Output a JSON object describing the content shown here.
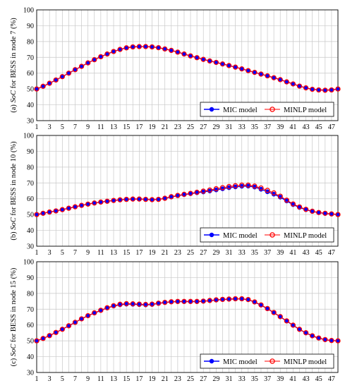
{
  "chart_data": [
    {
      "type": "line",
      "ylabel_prefix": "(a) ",
      "ylabel_italic": "SoC",
      "ylabel_suffix": " for BESS in node 7 (%)",
      "xlim": [
        1,
        48
      ],
      "ylim": [
        30,
        100
      ],
      "x_ticks": [
        1,
        3,
        5,
        7,
        9,
        11,
        13,
        15,
        17,
        19,
        21,
        23,
        25,
        27,
        29,
        31,
        33,
        35,
        37,
        39,
        41,
        43,
        45,
        47
      ],
      "y_ticks": [
        30,
        40,
        50,
        60,
        70,
        80,
        90,
        100
      ],
      "grid": true,
      "legend": "bottom-right",
      "x": [
        1,
        2,
        3,
        4,
        5,
        6,
        7,
        8,
        9,
        10,
        11,
        12,
        13,
        14,
        15,
        16,
        17,
        18,
        19,
        20,
        21,
        22,
        23,
        24,
        25,
        26,
        27,
        28,
        29,
        30,
        31,
        32,
        33,
        34,
        35,
        36,
        37,
        38,
        39,
        40,
        41,
        42,
        43,
        44,
        45,
        46,
        47,
        48
      ],
      "series": [
        {
          "name": "MIC model",
          "color": "#0000ff",
          "values": [
            50,
            51.7,
            53.6,
            55.7,
            57.8,
            60,
            62.2,
            64.3,
            66.5,
            68.5,
            70.4,
            72.1,
            73.7,
            75,
            76,
            76.6,
            76.8,
            76.8,
            76.6,
            76.1,
            75.3,
            74.4,
            73.3,
            72.1,
            70.9,
            69.8,
            68.7,
            67.7,
            66.8,
            65.8,
            64.8,
            63.8,
            62.7,
            61.6,
            60.5,
            59.4,
            58.3,
            57.1,
            55.9,
            54.5,
            53.2,
            51.8,
            50.7,
            49.8,
            49.4,
            49.2,
            49.4,
            50
          ]
        },
        {
          "name": "MINLP model",
          "color": "#ff0000",
          "values": [
            50,
            51.7,
            53.6,
            55.7,
            57.8,
            60,
            62.2,
            64.3,
            66.5,
            68.5,
            70.4,
            72.1,
            73.7,
            75,
            76,
            76.6,
            76.8,
            76.8,
            76.6,
            76.1,
            75.3,
            74.4,
            73.3,
            72.1,
            70.9,
            69.8,
            68.7,
            67.7,
            66.8,
            65.8,
            64.8,
            63.8,
            62.7,
            61.6,
            60.5,
            59.4,
            58.3,
            57.1,
            55.9,
            54.5,
            53.2,
            51.8,
            50.7,
            49.8,
            49.4,
            49.2,
            49.4,
            50
          ]
        }
      ]
    },
    {
      "type": "line",
      "ylabel_prefix": "(b) ",
      "ylabel_italic": "SoC",
      "ylabel_suffix": " for BESS in node 10 (%)",
      "xlim": [
        1,
        48
      ],
      "ylim": [
        30,
        100
      ],
      "x_ticks": [
        1,
        3,
        5,
        7,
        9,
        11,
        13,
        15,
        17,
        19,
        21,
        23,
        25,
        27,
        29,
        31,
        33,
        35,
        37,
        39,
        41,
        43,
        45,
        47
      ],
      "y_ticks": [
        30,
        40,
        50,
        60,
        70,
        80,
        90,
        100
      ],
      "grid": true,
      "legend": "bottom-right",
      "x": [
        1,
        2,
        3,
        4,
        5,
        6,
        7,
        8,
        9,
        10,
        11,
        12,
        13,
        14,
        15,
        16,
        17,
        18,
        19,
        20,
        21,
        22,
        23,
        24,
        25,
        26,
        27,
        28,
        29,
        30,
        31,
        32,
        33,
        34,
        35,
        36,
        37,
        38,
        39,
        40,
        41,
        42,
        43,
        44,
        45,
        46,
        47,
        48
      ],
      "series": [
        {
          "name": "MIC model",
          "color": "#0000ff",
          "values": [
            50,
            50.8,
            51.6,
            52.3,
            53.1,
            54,
            54.9,
            55.8,
            56.6,
            57.3,
            57.9,
            58.4,
            58.9,
            59.3,
            59.6,
            59.8,
            59.8,
            59.6,
            59.4,
            59.6,
            60.2,
            61.1,
            61.9,
            62.6,
            63.2,
            63.8,
            64.3,
            64.9,
            65.6,
            66.3,
            67,
            67.5,
            67.9,
            68,
            67.4,
            66,
            64.4,
            62.9,
            61,
            58.6,
            56.3,
            54.5,
            53.1,
            52,
            51.2,
            50.7,
            50.4,
            50
          ]
        },
        {
          "name": "MINLP model",
          "color": "#ff0000",
          "values": [
            50,
            50.8,
            51.6,
            52.3,
            53.1,
            54,
            54.9,
            55.8,
            56.6,
            57.3,
            57.9,
            58.4,
            58.9,
            59.3,
            59.6,
            59.8,
            59.8,
            59.6,
            59.4,
            59.6,
            60.3,
            61.3,
            62.1,
            62.8,
            63.4,
            64.1,
            64.8,
            65.5,
            66.3,
            67,
            67.7,
            68.2,
            68.6,
            68.6,
            68,
            66.8,
            65.3,
            63.7,
            61.6,
            59.1,
            56.7,
            54.8,
            53.3,
            52.1,
            51.3,
            50.8,
            50.4,
            50
          ]
        }
      ]
    },
    {
      "type": "line",
      "ylabel_prefix": "(c) ",
      "ylabel_italic": "SoC",
      "ylabel_suffix": " for BESS in node 15 (%)",
      "xlim": [
        1,
        48
      ],
      "ylim": [
        30,
        100
      ],
      "x_ticks": [
        1,
        3,
        5,
        7,
        9,
        11,
        13,
        15,
        17,
        19,
        21,
        23,
        25,
        27,
        29,
        31,
        33,
        35,
        37,
        39,
        41,
        43,
        45,
        47
      ],
      "y_ticks": [
        30,
        40,
        50,
        60,
        70,
        80,
        90,
        100
      ],
      "grid": true,
      "legend": "bottom-right",
      "x": [
        1,
        2,
        3,
        4,
        5,
        6,
        7,
        8,
        9,
        10,
        11,
        12,
        13,
        14,
        15,
        16,
        17,
        18,
        19,
        20,
        21,
        22,
        23,
        24,
        25,
        26,
        27,
        28,
        29,
        30,
        31,
        32,
        33,
        34,
        35,
        36,
        37,
        38,
        39,
        40,
        41,
        42,
        43,
        44,
        45,
        46,
        47,
        48
      ],
      "series": [
        {
          "name": "MIC model",
          "color": "#0000ff",
          "values": [
            50,
            51.5,
            53.3,
            55.3,
            57.3,
            59.5,
            61.7,
            63.9,
            65.9,
            67.6,
            69.2,
            70.8,
            72,
            72.8,
            73.2,
            73.1,
            72.9,
            72.7,
            73,
            73.6,
            74.2,
            74.6,
            74.8,
            74.8,
            74.8,
            74.8,
            75,
            75.4,
            75.8,
            76.1,
            76.3,
            76.5,
            76.5,
            76,
            74.5,
            72.6,
            70.3,
            67.8,
            65.2,
            62.5,
            59.8,
            57.2,
            55,
            53.1,
            51.7,
            50.7,
            50.2,
            50
          ]
        },
        {
          "name": "MINLP model",
          "color": "#ff0000",
          "values": [
            50,
            51.5,
            53.3,
            55.3,
            57.3,
            59.5,
            61.7,
            63.9,
            65.9,
            67.7,
            69.3,
            70.9,
            72.2,
            73.1,
            73.5,
            73.4,
            73.2,
            73,
            73.2,
            73.8,
            74.3,
            74.7,
            74.9,
            74.9,
            74.9,
            74.9,
            75.1,
            75.5,
            75.9,
            76.2,
            76.4,
            76.6,
            76.6,
            76.1,
            74.6,
            72.7,
            70.4,
            67.9,
            65.3,
            62.6,
            59.9,
            57.3,
            55.1,
            53.2,
            51.8,
            50.8,
            50.2,
            50
          ]
        }
      ]
    }
  ]
}
